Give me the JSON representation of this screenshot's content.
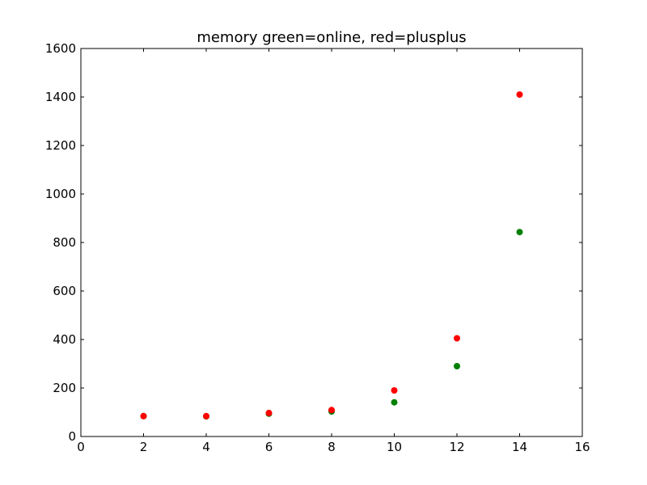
{
  "chart_data": {
    "type": "scatter",
    "title": "memory green=online, red=plusplus",
    "xlabel": "",
    "ylabel": "",
    "xlim": [
      0,
      16
    ],
    "ylim": [
      0,
      1600
    ],
    "xticks": [
      0,
      2,
      4,
      6,
      8,
      10,
      12,
      14,
      16
    ],
    "yticks": [
      0,
      200,
      400,
      600,
      800,
      1000,
      1200,
      1400,
      1600
    ],
    "grid": false,
    "legend": "none",
    "series": [
      {
        "color": "#008000",
        "x": [
          2,
          4,
          6,
          8,
          10,
          12,
          14
        ],
        "y": [
          84,
          83,
          94,
          103,
          141,
          290,
          843
        ]
      },
      {
        "color": "#ff0000",
        "x": [
          2,
          4,
          6,
          8,
          10,
          12,
          14
        ],
        "y": [
          84,
          84,
          97,
          109,
          190,
          405,
          1410
        ]
      }
    ]
  }
}
